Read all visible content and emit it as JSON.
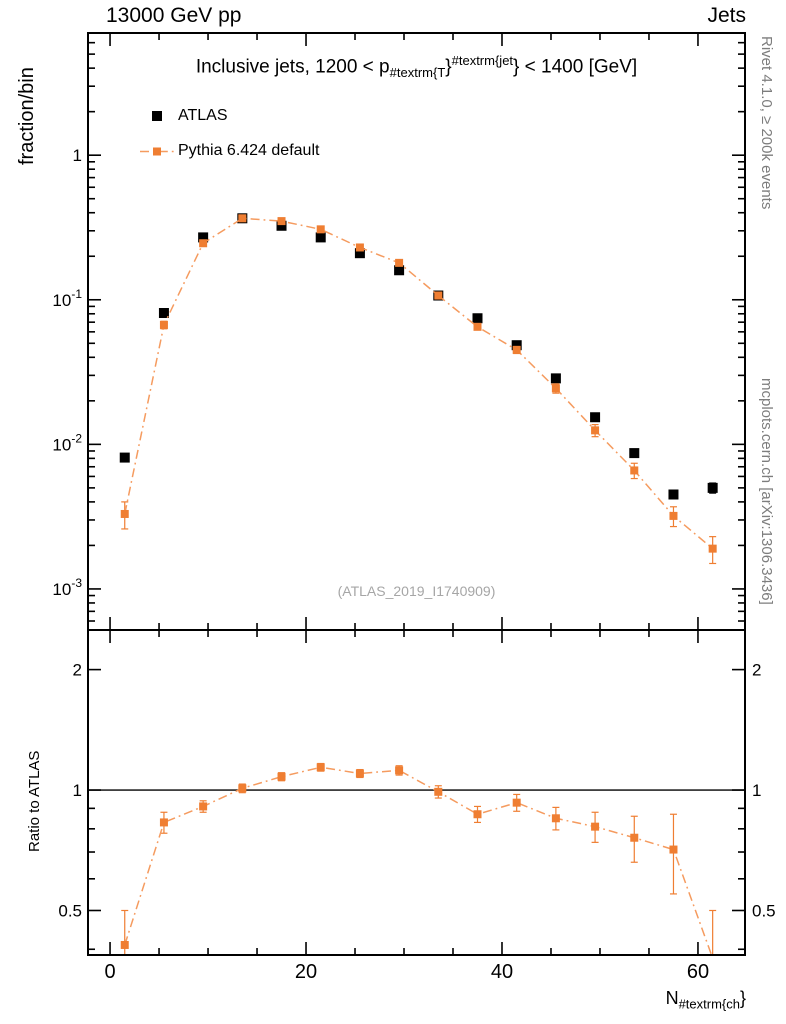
{
  "header": {
    "left": "13000 GeV pp",
    "right": "Jets"
  },
  "side_notes": {
    "top_right": "Rivet 4.1.0,  ≥ 200k events",
    "bottom_right": "mcplots.cern.ch [arXiv:1306.3436]"
  },
  "watermark": "(ATLAS_2019_I1740909)",
  "title": {
    "prefix": "Inclusive jets, 1200 < p",
    "sub": "#textrm{T",
    "mid": "}",
    "sup": "#textrm{jet",
    "suffix": "} < 1400 [GeV]"
  },
  "axes": {
    "xlabel_main": "N",
    "xlabel_sub": "#textrm{ch",
    "xlabel_suffix": "}"
  },
  "legend": [
    {
      "label": "ATLAS",
      "marker": "square",
      "color": "#000000",
      "line": "none"
    },
    {
      "label": "Pythia 6.424 default",
      "marker": "square",
      "color": "#ef7e32",
      "line_color": "#f59b5f",
      "line": "dashdot"
    }
  ],
  "chart_data": [
    {
      "type": "scatter",
      "panel": "main",
      "title": "Inclusive jets, 1200 < p_{#textrm{T}}^{#textrm{jet}} < 1400 [GeV]",
      "ylabel": "fraction/bin",
      "yscale": "log",
      "xlim": [
        -2.25,
        64.8
      ],
      "ylim": [
        0.00052,
        7.0
      ],
      "grid": false,
      "xticks": [
        {
          "v": 0,
          "label": "0"
        },
        {
          "v": 20,
          "label": "20"
        },
        {
          "v": 40,
          "label": "40"
        },
        {
          "v": 60,
          "label": "60"
        }
      ],
      "xtick_minor_step": 5,
      "yticks": [
        {
          "v": 1,
          "label": "1"
        },
        {
          "v": 0.1,
          "label": "10^{-1}"
        },
        {
          "v": 0.01,
          "label": "10^{-2}"
        },
        {
          "v": 0.001,
          "label": "10^{-3}"
        }
      ],
      "x": [
        1.5,
        5.5,
        9.5,
        13.5,
        17.5,
        21.5,
        25.5,
        29.5,
        33.5,
        37.5,
        41.5,
        45.5,
        49.5,
        53.5,
        57.5,
        61.5
      ],
      "series": [
        {
          "name": "ATLAS",
          "color": "#000000",
          "marker": "square",
          "marker_size": 10,
          "line": "none",
          "values": [
            0.0081,
            0.081,
            0.27,
            0.366,
            0.325,
            0.27,
            0.21,
            0.16,
            0.107,
            0.0745,
            0.0485,
            0.0286,
            0.0154,
            0.0087,
            0.0045,
            0.005
          ],
          "errors": [
            0.0005,
            0.003,
            0.006,
            0.007,
            0.006,
            0.005,
            0.004,
            0.003,
            0.0025,
            0.002,
            0.0015,
            0.001,
            0.0007,
            0.0005,
            0.0003,
            0.0004
          ]
        },
        {
          "name": "Pythia 6.424 default",
          "color": "#ef7e32",
          "line_color": "#f59b5f",
          "marker": "square",
          "marker_size": 8,
          "line": "dashdot",
          "values": [
            0.0033,
            0.067,
            0.246,
            0.366,
            0.35,
            0.307,
            0.23,
            0.18,
            0.107,
            0.065,
            0.045,
            0.0244,
            0.0125,
            0.0066,
            0.0032,
            0.0019
          ],
          "errors": [
            0.0007,
            0.004,
            0.009,
            0.01,
            0.01,
            0.009,
            0.008,
            0.006,
            0.0045,
            0.003,
            0.0025,
            0.0018,
            0.0012,
            0.0008,
            0.0005,
            0.0004
          ]
        }
      ]
    },
    {
      "type": "ratio",
      "panel": "ratio",
      "ylabel": "Ratio to ATLAS",
      "xlabel": "N_{#textrm{ch}}",
      "yscale": "log",
      "xlim": [
        -2.25,
        64.8
      ],
      "ylim": [
        0.387,
        2.512
      ],
      "refline": 1,
      "grid": false,
      "xticks": [
        {
          "v": 0,
          "label": "0"
        },
        {
          "v": 20,
          "label": "20"
        },
        {
          "v": 40,
          "label": "40"
        },
        {
          "v": 60,
          "label": "60"
        }
      ],
      "xtick_minor_step": 5,
      "yticks": [
        {
          "v": 2,
          "label": "2"
        },
        {
          "v": 1,
          "label": "1"
        },
        {
          "v": 0.5,
          "label": "0.5"
        }
      ],
      "x": [
        1.5,
        5.5,
        9.5,
        13.5,
        17.5,
        21.5,
        25.5,
        29.5,
        33.5,
        37.5,
        41.5,
        45.5,
        49.5,
        53.5,
        57.5,
        61.5
      ],
      "series": [
        {
          "name": "Pythia 6.424 default / ATLAS",
          "color": "#ef7e32",
          "line_color": "#f59b5f",
          "marker": "square",
          "marker_size": 8,
          "line": "dashdot",
          "values": [
            0.41,
            0.83,
            0.91,
            1.01,
            1.08,
            1.14,
            1.1,
            1.12,
            0.99,
            0.87,
            0.93,
            0.85,
            0.81,
            0.76,
            0.71,
            0.38
          ],
          "errors": [
            0.09,
            0.05,
            0.03,
            0.025,
            0.025,
            0.025,
            0.025,
            0.03,
            0.035,
            0.04,
            0.045,
            0.055,
            0.07,
            0.1,
            0.16,
            0.12
          ]
        }
      ]
    }
  ]
}
